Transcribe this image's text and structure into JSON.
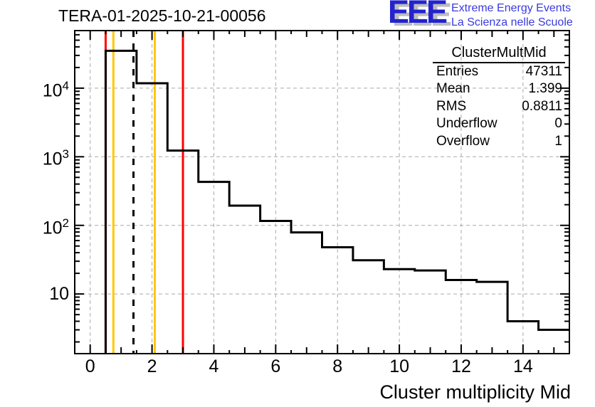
{
  "page": {
    "title": "TERA-01-2025-10-21-00056"
  },
  "logo": {
    "acronym": "EEE",
    "line1": "Extreme Energy Events",
    "line2": "La Scienza nelle Scuole",
    "blue": "#2323cf",
    "text_blue": "#3a3ae0",
    "shadow_gray": "#bdbdbd"
  },
  "stats_box": {
    "title": "ClusterMultMid",
    "rows": [
      {
        "label": "Entries",
        "value": "47311"
      },
      {
        "label": "Mean",
        "value": "1.399"
      },
      {
        "label": "RMS",
        "value": "0.8811"
      },
      {
        "label": "Underflow",
        "value": "0"
      },
      {
        "label": "Overflow",
        "value": "1"
      }
    ]
  },
  "chart_data": {
    "type": "bar",
    "subtype": "step-histogram",
    "title": "TERA-01-2025-10-21-00056",
    "xlabel": "Cluster multiplicity Mid",
    "ylabel": "",
    "y_scale": "log",
    "x_min": -0.5,
    "x_max": 15.5,
    "y_min": 1.35,
    "y_max": 69000,
    "bin_width": 1,
    "bin_centers": [
      0,
      1,
      2,
      3,
      4,
      5,
      6,
      7,
      8,
      9,
      10,
      11,
      12,
      13,
      14,
      15
    ],
    "counts": [
      0,
      35000,
      11800,
      1230,
      430,
      194,
      116,
      79,
      48,
      31,
      23,
      22,
      16,
      15,
      4,
      3
    ],
    "x_tick_labels": [
      0,
      2,
      4,
      6,
      8,
      10,
      12,
      14
    ],
    "y_tick_decades": [
      1,
      2,
      3,
      4
    ],
    "grid_x": [
      0,
      2,
      4,
      6,
      8,
      10,
      12,
      14
    ],
    "grid_y": [
      10,
      100,
      1000,
      10000
    ],
    "grid_on": true,
    "legend": "none",
    "histogram_color": "#000000",
    "grid_color": "#a9a9a9",
    "marker_lines": [
      {
        "name": "red-low-limit",
        "x": 0.5,
        "color": "#ff0000",
        "style": "solid"
      },
      {
        "name": "yellow-low-limit",
        "x": 0.75,
        "color": "#ffc800",
        "style": "solid"
      },
      {
        "name": "mean-line",
        "x": 1.4,
        "color": "#000000",
        "style": "dashed"
      },
      {
        "name": "yellow-high-limit",
        "x": 2.09,
        "color": "#ffc800",
        "style": "solid"
      },
      {
        "name": "red-high-limit",
        "x": 3.0,
        "color": "#ff0000",
        "style": "solid"
      }
    ]
  }
}
